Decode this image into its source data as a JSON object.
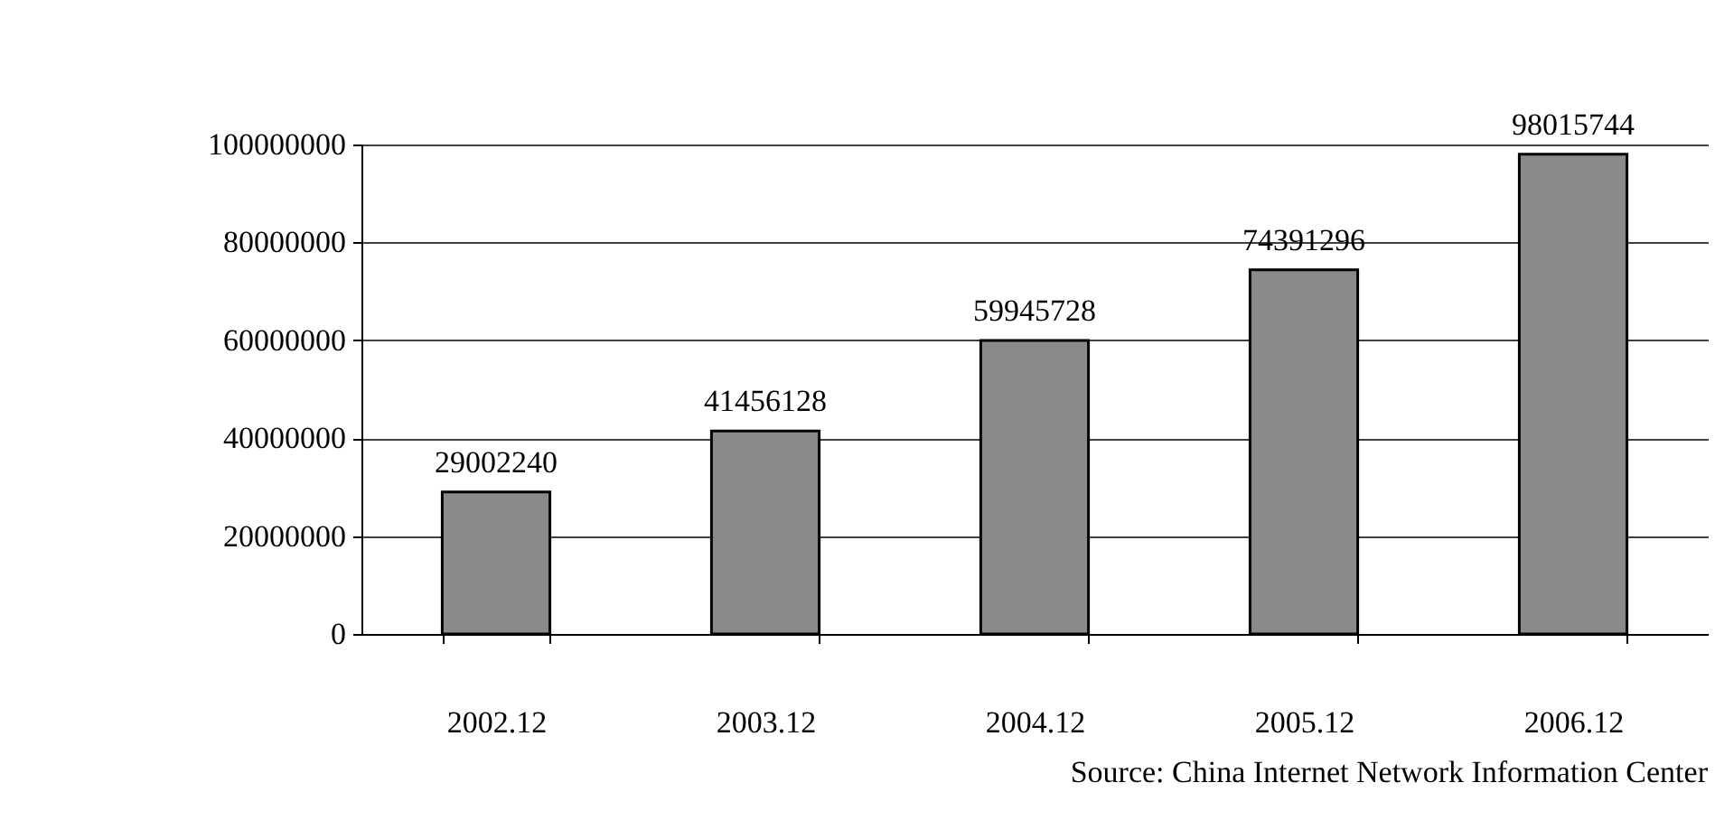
{
  "chart_data": {
    "type": "bar",
    "categories": [
      "2002.12",
      "2003.12",
      "2004.12",
      "2005.12",
      "2006.12"
    ],
    "values": [
      29002240,
      41456128,
      59945728,
      74391296,
      98015744
    ],
    "color": "#8a8a8a",
    "ylim": [
      0,
      100000000
    ],
    "yticks": [
      0,
      20000000,
      40000000,
      60000000,
      80000000,
      100000000
    ],
    "grid": "y",
    "data_labels": true,
    "annotations": [
      "Source: China Internet Network Information Center"
    ]
  }
}
